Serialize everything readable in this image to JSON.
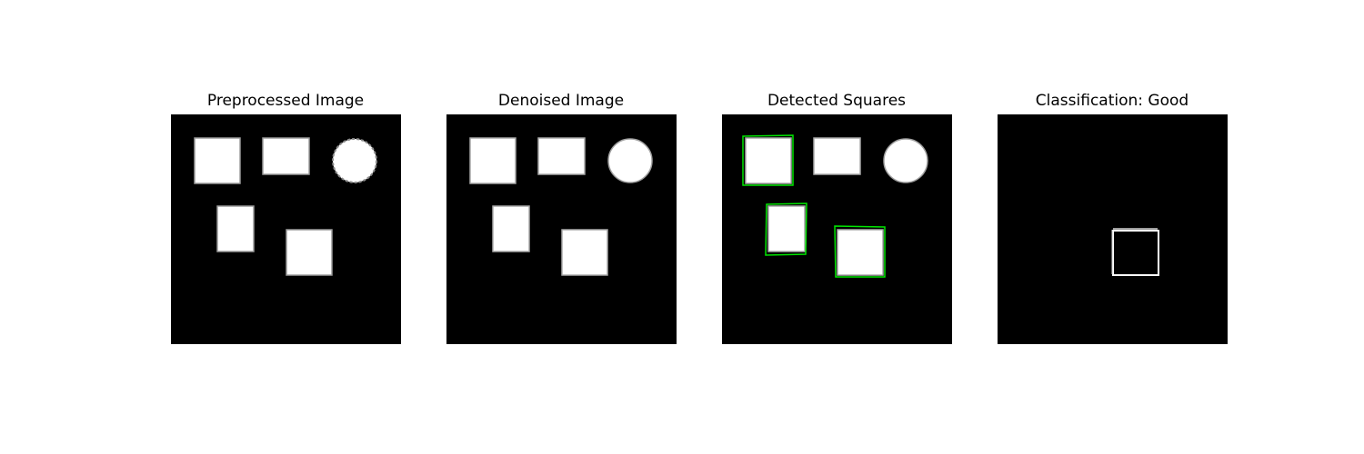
{
  "figure": {
    "background_color": "#ffffff",
    "image_background": "#000000",
    "shape_color": "#ffffff",
    "detection_color": "#00e600"
  },
  "panels": [
    {
      "id": "preprocessed",
      "title": "Preprocessed Image"
    },
    {
      "id": "denoised",
      "title": "Denoised Image"
    },
    {
      "id": "detected",
      "title": "Detected Squares"
    },
    {
      "id": "classification",
      "title": "Classification: Good"
    }
  ]
}
